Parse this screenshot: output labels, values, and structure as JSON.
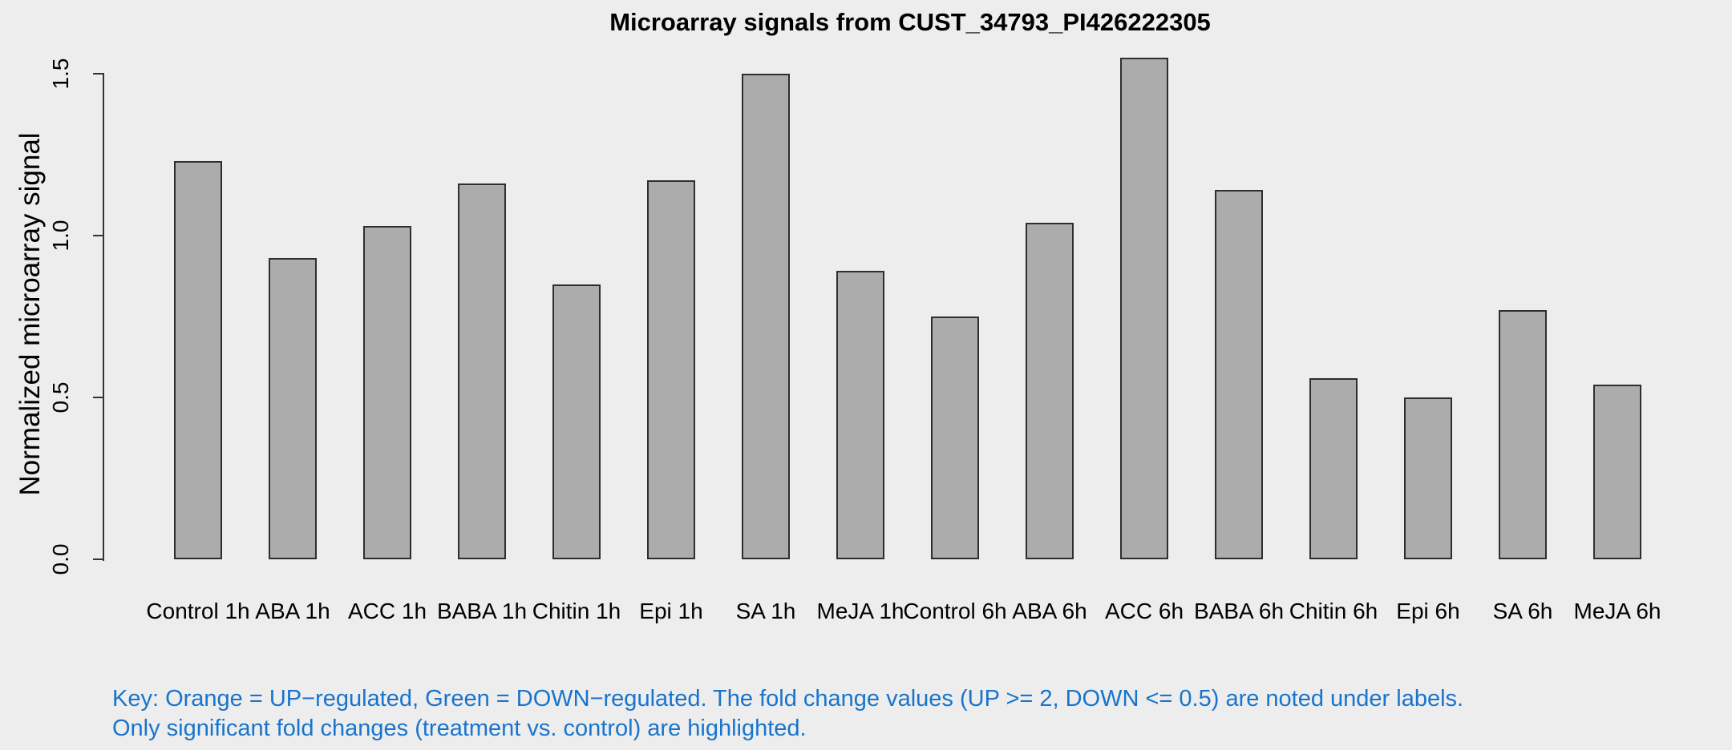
{
  "chart_data": {
    "type": "bar",
    "title": "Microarray signals from CUST_34793_PI426222305",
    "xlabel": "",
    "ylabel": "Normalized microarray signal",
    "categories": [
      "Control 1h",
      "ABA 1h",
      "ACC 1h",
      "BABA 1h",
      "Chitin 1h",
      "Epi 1h",
      "SA 1h",
      "MeJA 1h",
      "Control 6h",
      "ABA 6h",
      "ACC 6h",
      "BABA 6h",
      "Chitin 6h",
      "Epi 6h",
      "SA 6h",
      "MeJA 6h"
    ],
    "values": [
      1.23,
      0.93,
      1.03,
      1.16,
      0.85,
      1.17,
      1.5,
      0.89,
      0.75,
      1.04,
      1.55,
      1.14,
      0.56,
      0.5,
      0.77,
      0.54
    ],
    "ylim": [
      0,
      1.55
    ],
    "yticks": [
      0,
      0.5,
      1.0,
      1.5
    ],
    "ytick_labels": [
      "0.0",
      "0.5",
      "1.0",
      "1.5"
    ],
    "grid": false,
    "legend_position": "none",
    "bar_fill": "#ACACAC",
    "bar_border": "#2E2E2E"
  },
  "footer": {
    "key_line1": "Key: Orange = UP−regulated, Green = DOWN−regulated. The fold change values (UP >= 2, DOWN <= 0.5) are noted under labels.",
    "key_line2": "Only significant fold changes (treatment vs. control) are highlighted.",
    "key_color": "#1874CD"
  },
  "colors": {
    "background": "#EDEDED",
    "axis": "#333333",
    "text": "#000000"
  }
}
